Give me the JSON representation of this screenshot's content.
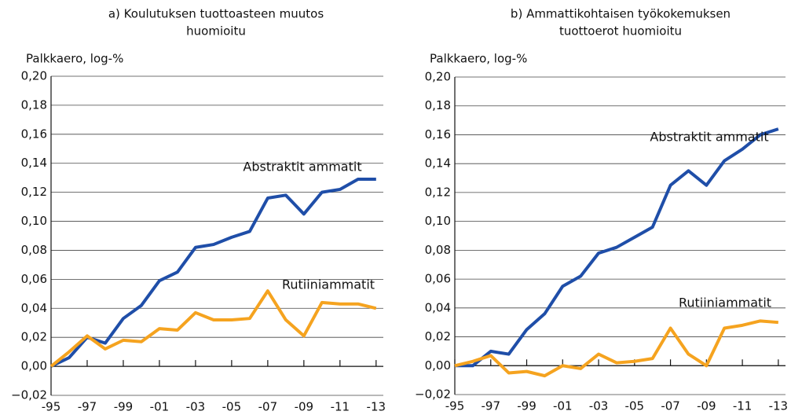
{
  "chart_data": [
    {
      "type": "line",
      "title": [
        "a) Koulutuksen tuottoasteen muutos",
        "huomioitu"
      ],
      "y_label": "Palkkaero, log-%",
      "x": [
        1995,
        1996,
        1997,
        1998,
        1999,
        2000,
        2001,
        2002,
        2003,
        2004,
        2005,
        2006,
        2007,
        2008,
        2009,
        2010,
        2011,
        2012,
        2013
      ],
      "series": [
        {
          "name": "Abstraktit ammatit",
          "color": "#1f4ea8",
          "values": [
            0,
            0.006,
            0.02,
            0.016,
            0.033,
            0.042,
            0.059,
            0.065,
            0.082,
            0.084,
            0.089,
            0.093,
            0.116,
            0.118,
            0.105,
            0.12,
            0.122,
            0.129,
            0.129
          ]
        },
        {
          "name": "Rutiiniammatit",
          "color": "#f5a31f",
          "values": [
            0,
            0.01,
            0.021,
            0.012,
            0.018,
            0.017,
            0.026,
            0.025,
            0.037,
            0.032,
            0.032,
            0.033,
            0.052,
            0.032,
            0.021,
            0.044,
            0.043,
            0.043,
            0.04
          ]
        }
      ],
      "xlim": [
        1995,
        2013.4
      ],
      "xticks": [
        {
          "value": 1995,
          "label": "-95"
        },
        {
          "value": 1997,
          "label": "-97"
        },
        {
          "value": 1999,
          "label": "-99"
        },
        {
          "value": 2001,
          "label": "-01"
        },
        {
          "value": 2003,
          "label": "-03"
        },
        {
          "value": 2005,
          "label": "-05"
        },
        {
          "value": 2007,
          "label": "-07"
        },
        {
          "value": 2009,
          "label": "-09"
        },
        {
          "value": 2011,
          "label": "-11"
        },
        {
          "value": 2013,
          "label": "-13"
        }
      ],
      "ylim": [
        -0.02,
        0.2
      ],
      "yticks": [
        {
          "value": -0.02,
          "label": "−0,02"
        },
        {
          "value": 0,
          "label": "0,00"
        },
        {
          "value": 0.02,
          "label": "0,02"
        },
        {
          "value": 0.04,
          "label": "0,04"
        },
        {
          "value": 0.06,
          "label": "0,06"
        },
        {
          "value": 0.08,
          "label": "0,08"
        },
        {
          "value": 0.1,
          "label": "0,10"
        },
        {
          "value": 0.12,
          "label": "0,12"
        },
        {
          "value": 0.14,
          "label": "0,14"
        },
        {
          "value": 0.16,
          "label": "0,16"
        },
        {
          "value": 0.18,
          "label": "0,18"
        },
        {
          "value": 0.2,
          "label": "0,20"
        }
      ],
      "grid": true
    },
    {
      "type": "line",
      "title": [
        "b) Ammattikohtaisen työkokemuksen",
        "tuottoerot huomioitu"
      ],
      "y_label": "Palkkaero, log-%",
      "x": [
        1995,
        1996,
        1997,
        1998,
        1999,
        2000,
        2001,
        2002,
        2003,
        2004,
        2005,
        2006,
        2007,
        2008,
        2009,
        2010,
        2011,
        2012,
        2013
      ],
      "series": [
        {
          "name": "Abstraktit ammatit",
          "color": "#1f4ea8",
          "values": [
            0,
            0,
            0.01,
            0.008,
            0.025,
            0.036,
            0.055,
            0.062,
            0.078,
            0.082,
            0.089,
            0.096,
            0.125,
            0.135,
            0.125,
            0.142,
            0.15,
            0.16,
            0.164
          ]
        },
        {
          "name": "Rutiiniammatit",
          "color": "#f5a31f",
          "values": [
            0,
            0.003,
            0.007,
            -0.005,
            -0.004,
            -0.007,
            0,
            -0.002,
            0.008,
            0.002,
            0.003,
            0.005,
            0.026,
            0.008,
            0,
            0.026,
            0.028,
            0.031,
            0.03
          ]
        }
      ],
      "xlim": [
        1995,
        2013.4
      ],
      "xticks": [
        {
          "value": 1995,
          "label": "-95"
        },
        {
          "value": 1997,
          "label": "-97"
        },
        {
          "value": 1999,
          "label": "-99"
        },
        {
          "value": 2001,
          "label": "-01"
        },
        {
          "value": 2003,
          "label": "-03"
        },
        {
          "value": 2005,
          "label": "-05"
        },
        {
          "value": 2007,
          "label": "-07"
        },
        {
          "value": 2009,
          "label": "-09"
        },
        {
          "value": 2011,
          "label": "-11"
        },
        {
          "value": 2013,
          "label": "-13"
        }
      ],
      "ylim": [
        -0.02,
        0.2
      ],
      "yticks": [
        {
          "value": -0.02,
          "label": "−0,02"
        },
        {
          "value": 0,
          "label": "0,00"
        },
        {
          "value": 0.02,
          "label": "0,02"
        },
        {
          "value": 0.04,
          "label": "0,04"
        },
        {
          "value": 0.06,
          "label": "0,06"
        },
        {
          "value": 0.08,
          "label": "0,08"
        },
        {
          "value": 0.1,
          "label": "0,10"
        },
        {
          "value": 0.12,
          "label": "0,12"
        },
        {
          "value": 0.14,
          "label": "0,14"
        },
        {
          "value": 0.16,
          "label": "0,16"
        },
        {
          "value": 0.18,
          "label": "0,18"
        },
        {
          "value": 0.2,
          "label": "0,20"
        }
      ],
      "grid": true
    }
  ]
}
